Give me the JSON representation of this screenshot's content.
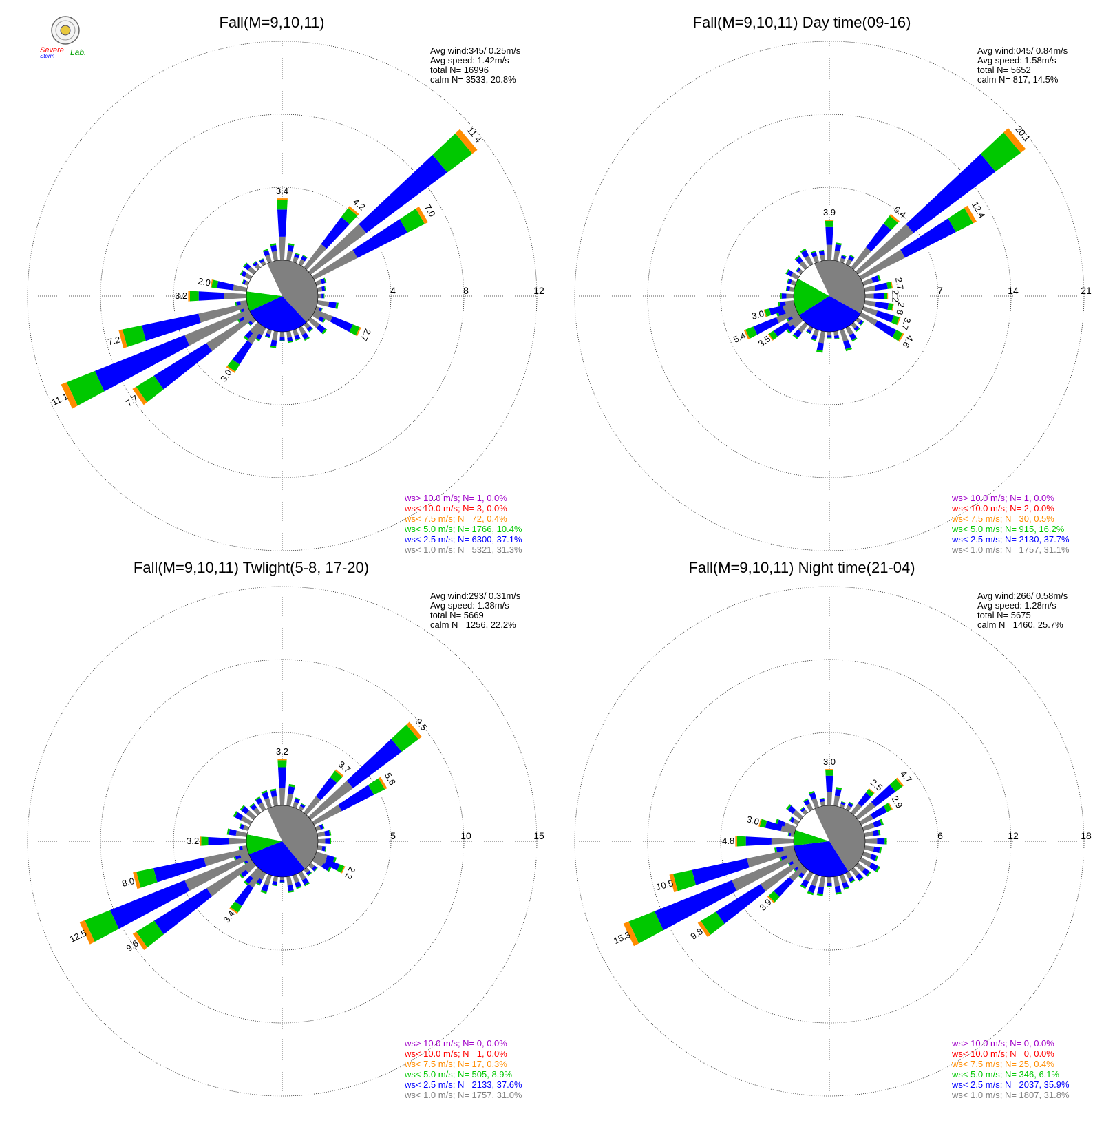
{
  "colors": {
    "calm": "#808080",
    "ws_1_0": "#808080",
    "ws_2_5": "#0000ff",
    "ws_5_0": "#00c800",
    "ws_7_5": "#ff8c00",
    "ws_10_lt": "#ff0000",
    "ws_10_gt": "#a000c8"
  },
  "logo": {
    "text_severe": "Severe",
    "text_storm": "Storm",
    "text_lab": "Lab."
  },
  "chart_data": [
    {
      "type": "wind-rose",
      "title": "Fall(M=9,10,11)",
      "rings": [
        4,
        8,
        12
      ],
      "stats": [
        "Avg wind:345/ 0.25m/s",
        "Avg speed: 1.42m/s",
        "total N=      16996",
        "calm N=   3533,  20.8%"
      ],
      "calm_sectors": {
        "gray": [
          0.32,
          0.77
        ],
        "blue": [
          0.77,
          1.07
        ],
        "green": [
          1.07,
          1.16
        ],
        "white": [
          1.16,
          1.32
        ]
      },
      "peaks": [
        {
          "dir": 0,
          "value": 3.4,
          "label": "3.4"
        },
        {
          "dir": 40,
          "value": 4.2,
          "label": "4.2"
        },
        {
          "dir": 50,
          "value": 11.4,
          "label": "11.4"
        },
        {
          "dir": 60,
          "value": 7.0,
          "label": "7.0"
        },
        {
          "dir": 115,
          "value": 2.7,
          "label": "2.7"
        },
        {
          "dir": 215,
          "value": 3.0,
          "label": "3.0"
        },
        {
          "dir": 235,
          "value": 7.7,
          "label": "7.7"
        },
        {
          "dir": 245,
          "value": 11.1,
          "label": "11.1"
        },
        {
          "dir": 255,
          "value": 7.2,
          "label": "7.2"
        },
        {
          "dir": 270,
          "value": 3.2,
          "label": "3.2"
        },
        {
          "dir": 280,
          "value": 2.0,
          "label": "2.0"
        }
      ],
      "legend": [
        "ws> 10.0 m/s; N=    1,  0.0%",
        "ws< 10.0 m/s; N=    3,  0.0%",
        "ws<  7.5 m/s; N=   72,  0.4%",
        "ws<  5.0 m/s; N= 1766, 10.4%",
        "ws<  2.5 m/s; N= 6300, 37.1%",
        "ws<  1.0 m/s; N= 5321, 31.3%"
      ]
    },
    {
      "type": "wind-rose",
      "title": "Fall(M=9,10,11) Day time(09-16)",
      "rings": [
        7,
        14,
        21
      ],
      "stats": [
        "Avg wind:045/ 0.84m/s",
        "Avg speed: 1.58m/s",
        "total N=        5652",
        "calm N=    817,  14.5%"
      ],
      "calm_sectors": {
        "gray": [
          0.32,
          0.72
        ],
        "blue": [
          0.72,
          1.05
        ],
        "green": [
          1.05,
          1.22
        ],
        "white": [
          1.22,
          1.32
        ]
      },
      "peaks": [
        {
          "dir": 0,
          "value": 3.9,
          "label": "3.9"
        },
        {
          "dir": 40,
          "value": 6.4,
          "label": "6.4"
        },
        {
          "dir": 50,
          "value": 20.1,
          "label": "20.1"
        },
        {
          "dir": 60,
          "value": 12.4,
          "label": "12.4"
        },
        {
          "dir": 80,
          "value": 2.7,
          "label": "2.7"
        },
        {
          "dir": 90,
          "value": 2.2,
          "label": "2.2"
        },
        {
          "dir": 100,
          "value": 2.8,
          "label": "2.8"
        },
        {
          "dir": 110,
          "value": 3.7,
          "label": "3.7"
        },
        {
          "dir": 120,
          "value": 4.6,
          "label": "4.6"
        },
        {
          "dir": 235,
          "value": 3.5,
          "label": "3.5"
        },
        {
          "dir": 245,
          "value": 5.4,
          "label": "5.4"
        },
        {
          "dir": 255,
          "value": 3.0,
          "label": "3.0"
        }
      ],
      "legend": [
        "ws> 10.0 m/s; N=    1,  0.0%",
        "ws< 10.0 m/s; N=    2,  0.0%",
        "ws<  7.5 m/s; N=   30,  0.5%",
        "ws<  5.0 m/s; N=  915, 16.2%",
        "ws<  2.5 m/s; N= 2130, 37.7%",
        "ws<  1.0 m/s; N= 1757, 31.1%"
      ]
    },
    {
      "type": "wind-rose",
      "title": "Fall(M=9,10,11) Twlight(5-8, 17-20)",
      "rings": [
        5,
        10,
        15
      ],
      "stats": [
        "Avg wind:293/ 0.31m/s",
        "Avg speed: 1.38m/s",
        "total N=        5669",
        "calm N=   1256,  22.2%"
      ],
      "calm_sectors": {
        "gray": [
          0.32,
          0.78
        ],
        "blue": [
          0.78,
          1.08
        ],
        "green": [
          1.08,
          1.17
        ],
        "white": [
          1.17,
          1.32
        ]
      },
      "peaks": [
        {
          "dir": 0,
          "value": 3.2,
          "label": "3.2"
        },
        {
          "dir": 40,
          "value": 3.7,
          "label": "3.7"
        },
        {
          "dir": 50,
          "value": 9.5,
          "label": "9.5"
        },
        {
          "dir": 60,
          "value": 5.6,
          "label": "5.6"
        },
        {
          "dir": 115,
          "value": 2.2,
          "label": "2.2"
        },
        {
          "dir": 215,
          "value": 3.4,
          "label": "3.4"
        },
        {
          "dir": 235,
          "value": 9.6,
          "label": "9.6"
        },
        {
          "dir": 245,
          "value": 12.5,
          "label": "12.5"
        },
        {
          "dir": 255,
          "value": 8.0,
          "label": "8.0"
        },
        {
          "dir": 270,
          "value": 3.2,
          "label": "3.2"
        }
      ],
      "legend": [
        "ws> 10.0 m/s; N=    0,  0.0%",
        "ws< 10.0 m/s; N=    1,  0.0%",
        "ws<  7.5 m/s; N=   17,  0.3%",
        "ws<  5.0 m/s; N=  505,  8.9%",
        "ws<  2.5 m/s; N= 2133, 37.6%",
        "ws<  1.0 m/s; N= 1757, 31.0%"
      ]
    },
    {
      "type": "wind-rose",
      "title": "Fall(M=9,10,11) Night time(21-04)",
      "rings": [
        6,
        12,
        18
      ],
      "stats": [
        "Avg wind:266/ 0.58m/s",
        "Avg speed: 1.28m/s",
        "total N=        5675",
        "calm N=   1460,  25.7%"
      ],
      "calm_sectors": {
        "gray": [
          0.32,
          0.8
        ],
        "blue": [
          0.8,
          1.12
        ],
        "green": [
          1.12,
          1.19
        ],
        "white": [
          1.19,
          1.32
        ]
      },
      "peaks": [
        {
          "dir": 0,
          "value": 3.0,
          "label": "3.0"
        },
        {
          "dir": 40,
          "value": 2.5,
          "label": "2.5"
        },
        {
          "dir": 50,
          "value": 4.7,
          "label": "4.7"
        },
        {
          "dir": 60,
          "value": 2.9,
          "label": "2.9"
        },
        {
          "dir": 225,
          "value": 3.9,
          "label": "3.9"
        },
        {
          "dir": 235,
          "value": 9.8,
          "label": "9.8"
        },
        {
          "dir": 245,
          "value": 15.3,
          "label": "15.3"
        },
        {
          "dir": 255,
          "value": 10.5,
          "label": "10.5"
        },
        {
          "dir": 270,
          "value": 4.8,
          "label": "4.8"
        },
        {
          "dir": 285,
          "value": 3.0,
          "label": "3.0"
        }
      ],
      "legend": [
        "ws> 10.0 m/s; N=    0,  0.0%",
        "ws< 10.0 m/s; N=    0,  0.0%",
        "ws<  7.5 m/s; N=   25,  0.4%",
        "ws<  5.0 m/s; N=  346,  6.1%",
        "ws<  2.5 m/s; N= 2037, 35.9%",
        "ws<  1.0 m/s; N= 1807, 31.8%"
      ]
    }
  ]
}
